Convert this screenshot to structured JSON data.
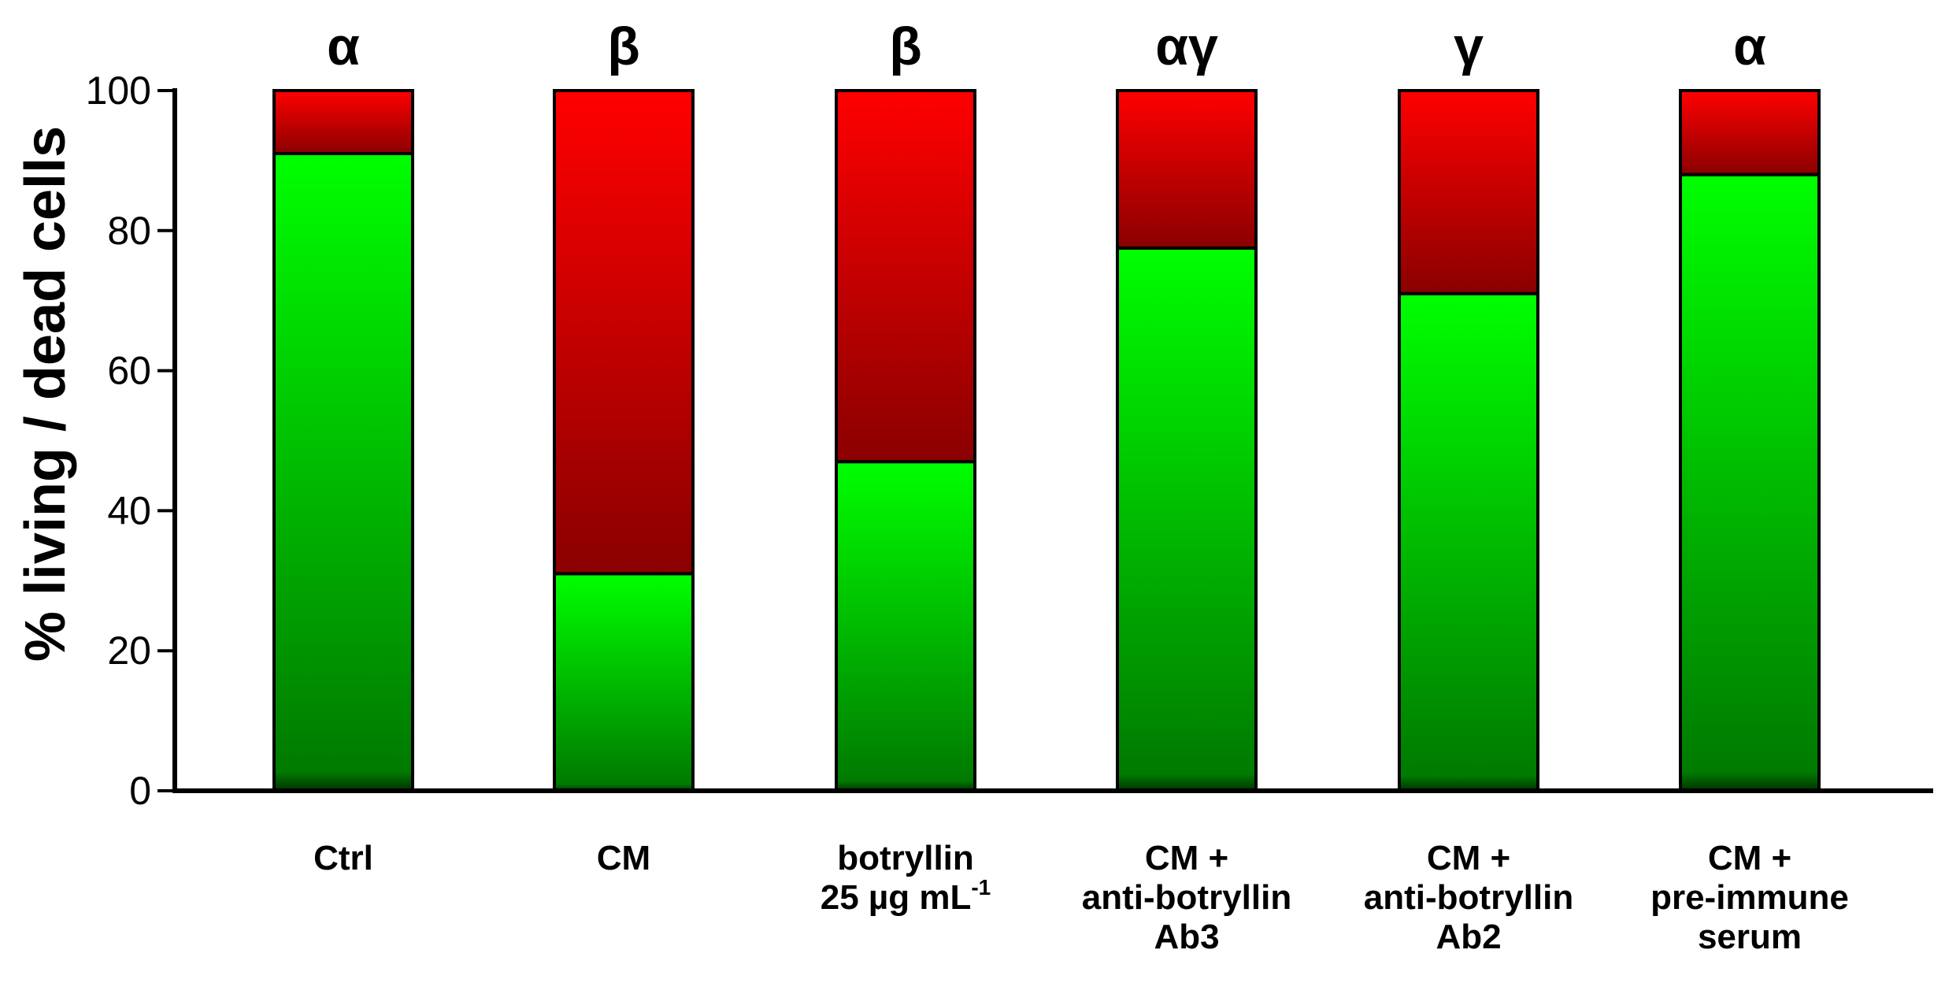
{
  "chart_data": {
    "type": "bar",
    "stacked": true,
    "title": "",
    "xlabel": "",
    "ylabel": "% living / dead cells",
    "ylim": [
      0,
      100
    ],
    "yticks": [
      0,
      20,
      40,
      60,
      80,
      100
    ],
    "categories": [
      [
        "Ctrl"
      ],
      [
        "CM"
      ],
      [
        "botryllin",
        "25 µg mL"
      ],
      [
        "CM +",
        "anti-botryllin",
        "Ab3"
      ],
      [
        "CM +",
        "anti-botryllin",
        "Ab2"
      ],
      [
        "CM +",
        "pre-immune",
        "serum"
      ]
    ],
    "category_superscripts": [
      "",
      "",
      "-1",
      "",
      "",
      ""
    ],
    "significance_letters": [
      "α",
      "β",
      "β",
      "αγ",
      "γ",
      "α"
    ],
    "series": [
      {
        "name": "living",
        "values": [
          91,
          31,
          47,
          77.5,
          71,
          88
        ],
        "color_top": "#00ff00",
        "color_bottom": "#007a00"
      },
      {
        "name": "dead",
        "values": [
          9,
          69,
          53,
          22.5,
          29,
          12
        ],
        "color_top": "#ff0000",
        "color_bottom": "#8a0000"
      }
    ],
    "grid": false
  }
}
